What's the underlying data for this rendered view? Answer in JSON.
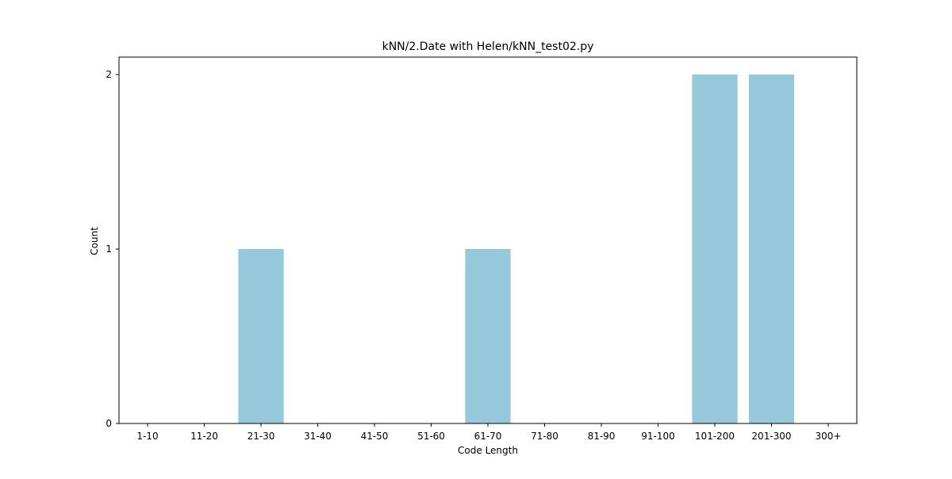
{
  "chart_data": {
    "type": "bar",
    "title": "kNN/2.Date with Helen/kNN_test02.py",
    "xlabel": "Code Length",
    "ylabel": "Count",
    "categories": [
      "1-10",
      "11-20",
      "21-30",
      "31-40",
      "41-50",
      "51-60",
      "61-70",
      "71-80",
      "81-90",
      "91-100",
      "101-200",
      "201-300",
      "300+"
    ],
    "values": [
      0,
      0,
      1,
      0,
      0,
      0,
      1,
      0,
      0,
      0,
      2,
      2,
      0
    ],
    "ylim": [
      0,
      2.1
    ],
    "yticks": [
      0,
      1,
      2
    ],
    "bar_color": "#96c8dc",
    "grid": false,
    "legend": "none"
  }
}
